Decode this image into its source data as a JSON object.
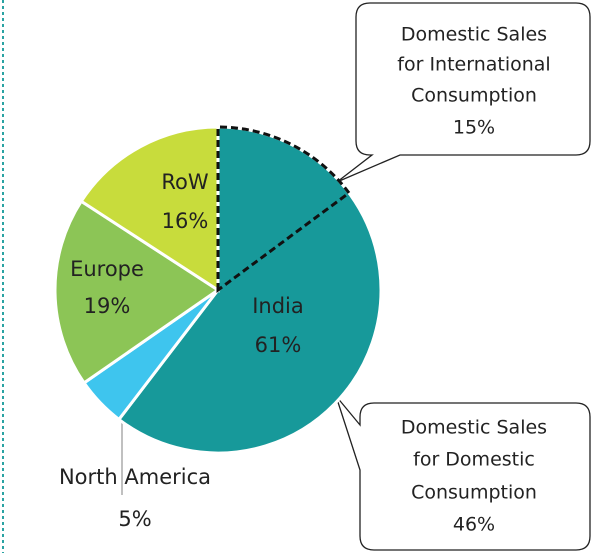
{
  "chart_data": {
    "type": "pie",
    "categories": [
      "India",
      "North America",
      "Europe",
      "RoW"
    ],
    "values": [
      61,
      5,
      19,
      16
    ],
    "value_labels": [
      "61%",
      "5%",
      "19%",
      "16%"
    ],
    "colors": [
      "#17999a",
      "#3ec5ee",
      "#8cc556",
      "#c8dc3c"
    ],
    "breakdown": [
      {
        "label_lines": [
          "Domestic Sales",
          "for International",
          "Consumption"
        ],
        "value": 15,
        "value_label": "15%"
      },
      {
        "label_lines": [
          "Domestic Sales",
          "for Domestic",
          "Consumption"
        ],
        "value": 46,
        "value_label": "46%"
      }
    ]
  }
}
